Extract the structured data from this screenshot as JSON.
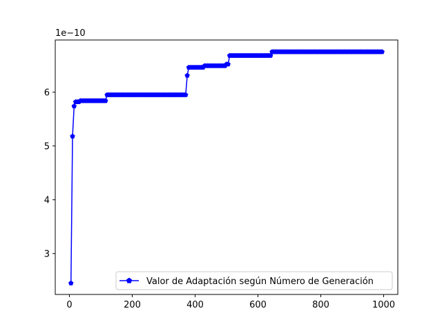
{
  "chart_data": {
    "type": "line",
    "title": "",
    "xlabel": "",
    "ylabel": "",
    "y_offset_label": "1e−10",
    "xlim": [
      -45,
      1045
    ],
    "ylim": [
      2.24,
      6.97
    ],
    "x_ticks": [
      0,
      200,
      400,
      600,
      800,
      1000
    ],
    "x_tick_labels": [
      "0",
      "200",
      "400",
      "600",
      "800",
      "1000"
    ],
    "y_ticks": [
      3,
      4,
      5,
      6
    ],
    "y_tick_labels": [
      "3",
      "4",
      "5",
      "6"
    ],
    "grid": false,
    "legend_position": "lower-right",
    "series": [
      {
        "name": "Valor de Adaptación según Número de Generación",
        "color": "#0000ff",
        "marker": "pentagon",
        "sampling_interval": 5,
        "steps": [
          {
            "x": 5,
            "y": 2.45
          },
          {
            "x": 10,
            "y": 5.18
          },
          {
            "x": 15,
            "y": 5.74
          },
          {
            "x": 20,
            "y": 5.82
          },
          {
            "x": 35,
            "y": 5.84
          },
          {
            "x": 120,
            "y": 5.95
          },
          {
            "x": 375,
            "y": 6.31
          },
          {
            "x": 380,
            "y": 6.46
          },
          {
            "x": 430,
            "y": 6.49
          },
          {
            "x": 500,
            "y": 6.52
          },
          {
            "x": 510,
            "y": 6.68
          },
          {
            "x": 645,
            "y": 6.75
          }
        ],
        "last_x": 995
      }
    ]
  }
}
